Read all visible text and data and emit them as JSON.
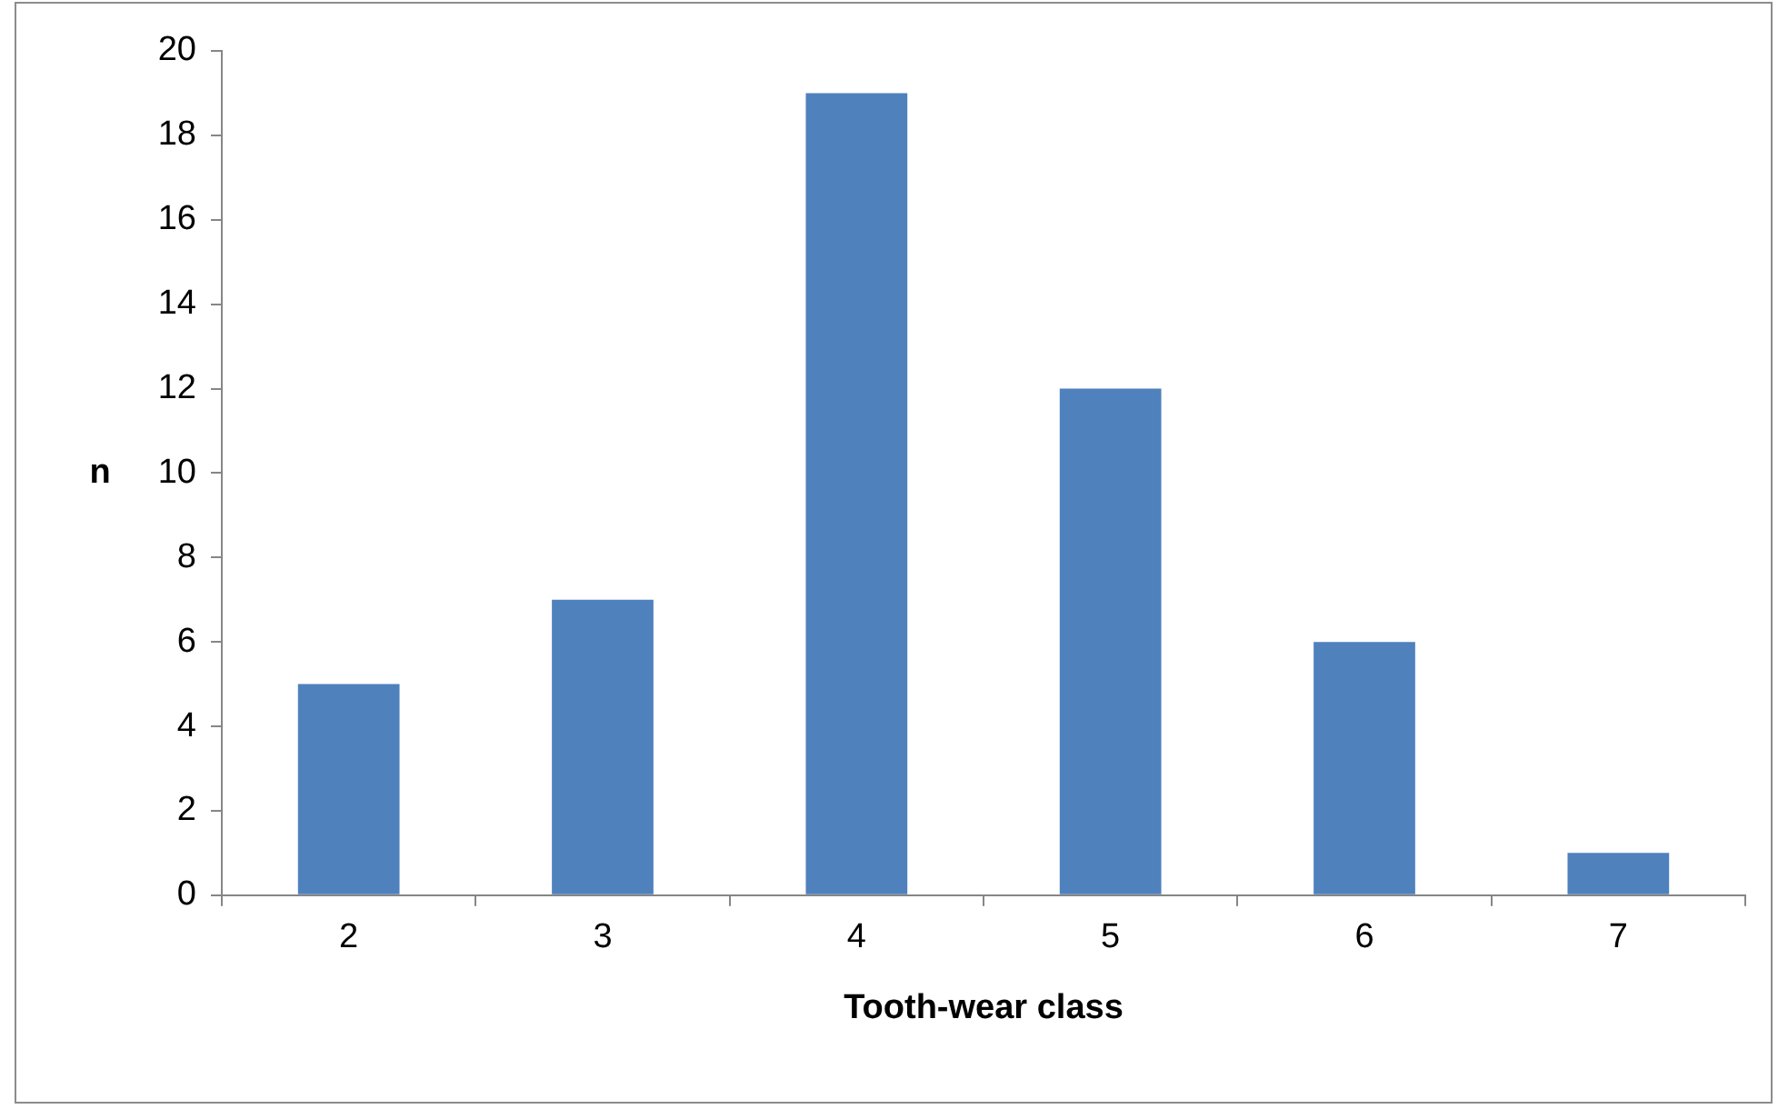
{
  "chart_data": {
    "type": "bar",
    "xlabel": "Tooth-wear class",
    "ylabel": "n",
    "categories": [
      "2",
      "3",
      "4",
      "5",
      "6",
      "7"
    ],
    "values": [
      5,
      7,
      19,
      12,
      6,
      1
    ],
    "color": "#4f81bd",
    "ylim": [
      0,
      20
    ],
    "yticks": [
      0,
      2,
      4,
      6,
      8,
      10,
      12,
      14,
      16,
      18,
      20
    ],
    "grid": false,
    "legend": false
  }
}
